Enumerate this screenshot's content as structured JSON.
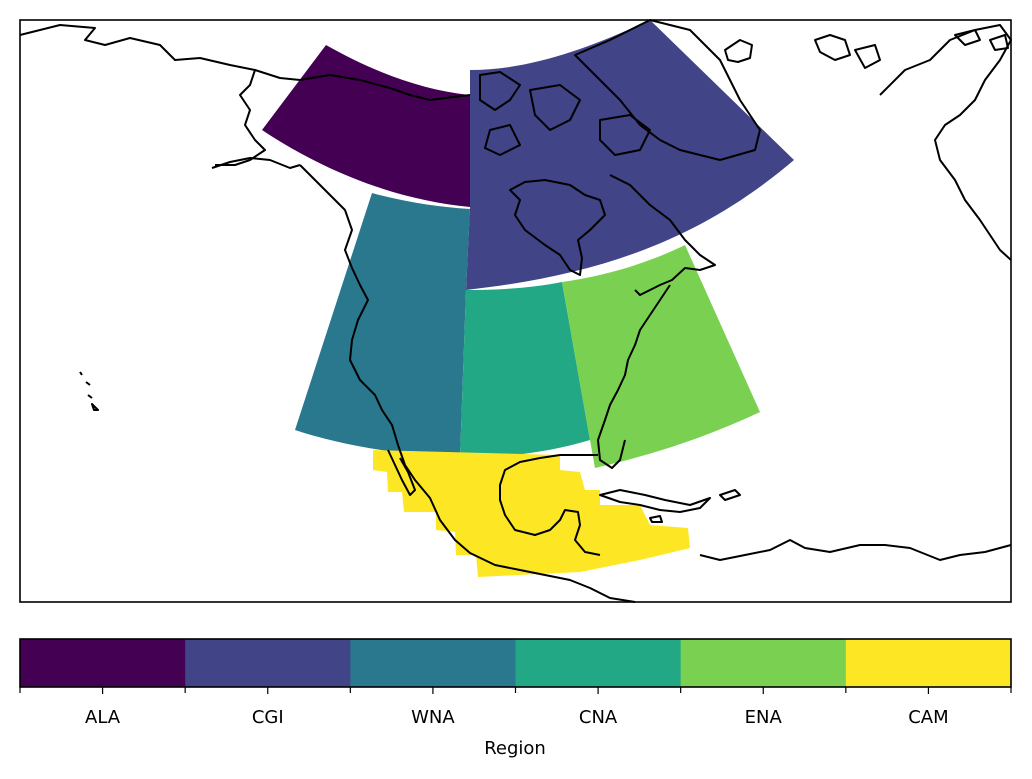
{
  "map": {
    "regions": [
      {
        "code": "ALA",
        "color": "#440154"
      },
      {
        "code": "CGI",
        "color": "#414487"
      },
      {
        "code": "WNA",
        "color": "#2a788e"
      },
      {
        "code": "CNA",
        "color": "#22a884"
      },
      {
        "code": "ENA",
        "color": "#7ad151"
      },
      {
        "code": "CAM",
        "color": "#fde725"
      }
    ],
    "coastline_color": "#000000"
  },
  "colorbar": {
    "label": "Region",
    "categories": [
      "ALA",
      "CGI",
      "WNA",
      "CNA",
      "ENA",
      "CAM"
    ],
    "colors": [
      "#440154",
      "#414487",
      "#2a788e",
      "#22a884",
      "#7ad151",
      "#fde725"
    ]
  }
}
